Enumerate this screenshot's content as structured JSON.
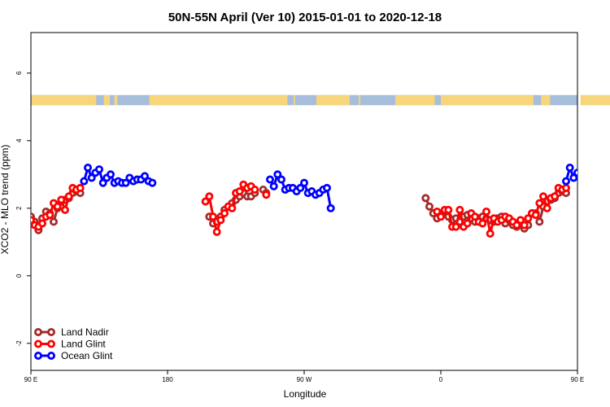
{
  "chart_data": {
    "type": "line",
    "title": "50N-55N April (Ver 10)   2015-01-01 to 2020-12-18",
    "xlabel": "Longitude",
    "ylabel": "XCO2 - MLO trend (ppm)",
    "xlim": [
      90,
      450
    ],
    "ylim": [
      -2.8,
      7.2
    ],
    "xticks": [
      {
        "value": 90,
        "label": "90 E"
      },
      {
        "value": 180,
        "label": "180"
      },
      {
        "value": 270,
        "label": "90 W"
      },
      {
        "value": 360,
        "label": "0"
      },
      {
        "value": 450,
        "label": "90 E"
      },
      {
        "value": 540,
        "label": "180"
      }
    ],
    "yticks": [
      {
        "value": -2,
        "label": "-2"
      },
      {
        "value": 0,
        "label": "0"
      },
      {
        "value": 2,
        "label": "2"
      },
      {
        "value": 4,
        "label": "4"
      },
      {
        "value": 6,
        "label": "6"
      }
    ],
    "legend_position": "bottom-left",
    "land_mask": {
      "y_range": [
        5.05,
        5.35
      ],
      "ocean_color": "#a6bddb",
      "land_color": "#f7d57a",
      "land_segments": [
        [
          90,
          133
        ],
        [
          138,
          142
        ],
        [
          145,
          147
        ],
        [
          168,
          259
        ],
        [
          263,
          264
        ],
        [
          278,
          300
        ],
        [
          306,
          307
        ],
        [
          330,
          356
        ],
        [
          360,
          421
        ],
        [
          426,
          432
        ],
        [
          452,
          493
        ]
      ]
    },
    "series": [
      {
        "name": "Land Nadir",
        "color": "#a52a2a",
        "segments": [
          [
            [
              90,
              1.75
            ],
            [
              92.5,
              1.6
            ],
            [
              95,
              1.35
            ],
            [
              97.5,
              1.7
            ],
            [
              100,
              1.9
            ],
            [
              102.5,
              1.85
            ],
            [
              105,
              1.6
            ],
            [
              107.5,
              2.0
            ],
            [
              110,
              2.2
            ],
            [
              112.5,
              2.25
            ],
            [
              115,
              2.3
            ],
            [
              117.5,
              2.45
            ],
            [
              120,
              2.5
            ],
            [
              122.5,
              2.45
            ]
          ],
          [
            [
              207.5,
              1.75
            ],
            [
              210,
              1.55
            ],
            [
              212.5,
              1.6
            ],
            [
              215,
              1.75
            ],
            [
              217.5,
              1.95
            ],
            [
              220,
              2.05
            ],
            [
              222.5,
              2.15
            ],
            [
              225,
              2.25
            ],
            [
              227.5,
              2.35
            ],
            [
              230,
              2.45
            ],
            [
              232.5,
              2.35
            ],
            [
              235,
              2.35
            ],
            [
              237.5,
              2.45
            ]
          ],
          [
            [
              243,
              2.55
            ],
            [
              245,
              2.45
            ]
          ],
          [
            [
              350,
              2.3
            ],
            [
              352.5,
              2.05
            ],
            [
              355,
              1.85
            ],
            [
              357.5,
              1.7
            ],
            [
              360,
              1.8
            ],
            [
              362.5,
              1.9
            ],
            [
              365,
              1.75
            ],
            [
              367.5,
              1.65
            ],
            [
              370,
              1.7
            ],
            [
              372.5,
              1.6
            ],
            [
              375,
              1.75
            ],
            [
              377.5,
              1.8
            ],
            [
              380,
              1.7
            ],
            [
              382.5,
              1.6
            ],
            [
              385,
              1.7
            ],
            [
              387.5,
              1.75
            ],
            [
              390,
              1.7
            ],
            [
              392.5,
              1.65
            ],
            [
              395,
              1.6
            ],
            [
              397.5,
              1.7
            ],
            [
              400,
              1.75
            ],
            [
              402.5,
              1.55
            ],
            [
              405,
              1.65
            ],
            [
              407.5,
              1.5
            ],
            [
              410,
              1.45
            ],
            [
              412.5,
              1.55
            ],
            [
              415,
              1.4
            ],
            [
              417.5,
              1.5
            ],
            [
              420,
              1.85
            ],
            [
              422.5,
              1.85
            ],
            [
              425,
              1.6
            ],
            [
              427.5,
              2.05
            ],
            [
              430,
              2.2
            ],
            [
              432.5,
              2.25
            ],
            [
              435,
              2.3
            ],
            [
              437.5,
              2.45
            ],
            [
              440,
              2.5
            ],
            [
              442.5,
              2.45
            ]
          ]
        ]
      },
      {
        "name": "Land Glint",
        "color": "#ff0000",
        "segments": [
          [
            [
              90,
              1.65
            ],
            [
              92.5,
              1.5
            ],
            [
              95,
              1.45
            ],
            [
              97.5,
              1.55
            ],
            [
              100,
              1.75
            ],
            [
              102.5,
              1.8
            ],
            [
              105,
              2.15
            ],
            [
              107.5,
              2.05
            ],
            [
              110,
              2.25
            ],
            [
              112.5,
              1.95
            ],
            [
              115,
              2.35
            ],
            [
              117.5,
              2.6
            ],
            [
              120,
              2.55
            ],
            [
              122.5,
              2.6
            ]
          ],
          [
            [
              205,
              2.2
            ],
            [
              207.5,
              2.35
            ],
            [
              210,
              1.75
            ],
            [
              212.5,
              1.3
            ],
            [
              215,
              1.65
            ],
            [
              217.5,
              1.85
            ],
            [
              220,
              2.05
            ],
            [
              222.5,
              2.0
            ],
            [
              225,
              2.45
            ],
            [
              227.5,
              2.5
            ],
            [
              230,
              2.7
            ],
            [
              232.5,
              2.6
            ],
            [
              235,
              2.65
            ],
            [
              237.5,
              2.55
            ]
          ],
          [
            [
              245,
              2.4
            ]
          ],
          [
            [
              357.5,
              1.9
            ],
            [
              360,
              1.75
            ],
            [
              362.5,
              1.95
            ],
            [
              365,
              1.95
            ],
            [
              367.5,
              1.45
            ],
            [
              370,
              1.45
            ],
            [
              372.5,
              1.95
            ],
            [
              375,
              1.45
            ],
            [
              377.5,
              1.55
            ],
            [
              380,
              1.85
            ],
            [
              382.5,
              1.75
            ],
            [
              385,
              1.6
            ],
            [
              387.5,
              1.55
            ],
            [
              390,
              1.9
            ],
            [
              392.5,
              1.25
            ],
            [
              395,
              1.7
            ],
            [
              397.5,
              1.6
            ],
            [
              400,
              1.65
            ],
            [
              402.5,
              1.75
            ],
            [
              405,
              1.7
            ],
            [
              407.5,
              1.6
            ],
            [
              410,
              1.5
            ],
            [
              412.5,
              1.65
            ],
            [
              415,
              1.5
            ],
            [
              417.5,
              1.7
            ],
            [
              420,
              1.85
            ],
            [
              422.5,
              1.8
            ],
            [
              425,
              2.15
            ],
            [
              427.5,
              2.35
            ],
            [
              430,
              2.0
            ],
            [
              432.5,
              2.3
            ],
            [
              435,
              2.35
            ],
            [
              437.5,
              2.6
            ],
            [
              440,
              2.55
            ],
            [
              442.5,
              2.6
            ]
          ]
        ]
      },
      {
        "name": "Ocean Glint",
        "color": "#0000ff",
        "segments": [
          [
            [
              125,
              2.8
            ],
            [
              127.5,
              3.2
            ],
            [
              130,
              2.9
            ],
            [
              132.5,
              3.05
            ],
            [
              135,
              3.15
            ],
            [
              137.5,
              2.75
            ],
            [
              140,
              2.9
            ],
            [
              142.5,
              3.0
            ],
            [
              145,
              2.75
            ],
            [
              147.5,
              2.8
            ],
            [
              150,
              2.75
            ],
            [
              152.5,
              2.75
            ],
            [
              155,
              2.9
            ],
            [
              157.5,
              2.8
            ],
            [
              160,
              2.85
            ],
            [
              162.5,
              2.85
            ],
            [
              165,
              2.95
            ],
            [
              167.5,
              2.8
            ],
            [
              170,
              2.75
            ]
          ],
          [
            [
              247.5,
              2.85
            ],
            [
              250,
              2.65
            ],
            [
              252.5,
              3.0
            ],
            [
              255,
              2.85
            ],
            [
              257.5,
              2.55
            ],
            [
              260,
              2.6
            ],
            [
              262.5,
              2.6
            ],
            [
              265,
              2.5
            ],
            [
              267.5,
              2.6
            ],
            [
              270,
              2.75
            ],
            [
              272.5,
              2.45
            ],
            [
              275,
              2.5
            ],
            [
              277.5,
              2.4
            ],
            [
              280,
              2.45
            ],
            [
              282.5,
              2.55
            ],
            [
              285,
              2.6
            ],
            [
              287.5,
              2.0
            ]
          ],
          [
            [
              442.5,
              2.8
            ],
            [
              445,
              3.2
            ],
            [
              447.5,
              2.9
            ],
            [
              450,
              3.05
            ],
            [
              452.5,
              3.15
            ],
            [
              455,
              2.75
            ],
            [
              457.5,
              2.9
            ],
            [
              460,
              3.0
            ]
          ]
        ]
      }
    ]
  }
}
